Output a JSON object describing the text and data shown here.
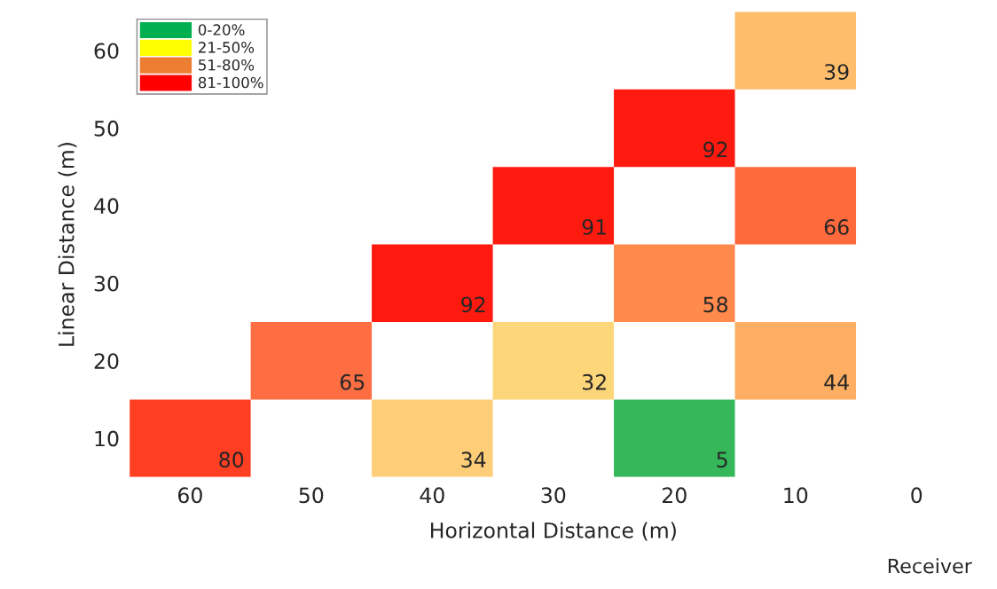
{
  "chart_data": {
    "type": "heatmap",
    "xlabel": "Horizontal Distance (m)",
    "ylabel": "Linear Distance (m)",
    "categories": [
      "60",
      "50",
      "40",
      "30",
      "20",
      "10",
      "0"
    ],
    "y_categories": [
      "60",
      "50",
      "40",
      "30",
      "20",
      "10"
    ],
    "cells": [
      [
        null,
        null,
        null,
        null,
        null,
        39,
        null
      ],
      [
        null,
        null,
        null,
        null,
        92,
        null,
        null
      ],
      [
        null,
        null,
        null,
        91,
        null,
        66,
        null
      ],
      [
        null,
        null,
        92,
        null,
        58,
        null,
        null
      ],
      [
        null,
        65,
        null,
        32,
        null,
        44,
        null
      ],
      [
        80,
        null,
        34,
        null,
        5,
        null,
        null
      ]
    ],
    "colors": [
      [
        null,
        null,
        null,
        null,
        null,
        "#fdbd6b",
        null
      ],
      [
        null,
        null,
        null,
        null,
        "#ff1a10",
        null,
        null
      ],
      [
        null,
        null,
        null,
        "#ff1a10",
        null,
        "#ff6a3d",
        null
      ],
      [
        null,
        null,
        "#ff1a10",
        null,
        "#ff8a4c",
        null,
        null
      ],
      [
        null,
        "#ff6e43",
        null,
        "#fdd67a",
        null,
        "#fdae62",
        null
      ],
      [
        "#ff3e22",
        null,
        "#fdcd78",
        null,
        "#36b85a",
        null,
        null
      ]
    ],
    "series": [
      {
        "name": "0-20%",
        "color": "#00b050",
        "values": [
          null,
          null,
          null,
          null,
          null,
          null,
          null
        ]
      },
      {
        "name": "21-50%",
        "color": "#ffff00",
        "values": [
          null,
          null,
          null,
          null,
          null,
          null,
          null
        ]
      },
      {
        "name": "51-80%",
        "color": "#ed7d31",
        "values": [
          null,
          null,
          null,
          null,
          null,
          null,
          null
        ]
      },
      {
        "name": "81-100%",
        "color": "#ff0000",
        "values": [
          null,
          null,
          null,
          null,
          null,
          null,
          null
        ]
      }
    ],
    "legend": "top left",
    "data_labels": true,
    "grid": false,
    "annotations": [
      "Receiver"
    ]
  }
}
